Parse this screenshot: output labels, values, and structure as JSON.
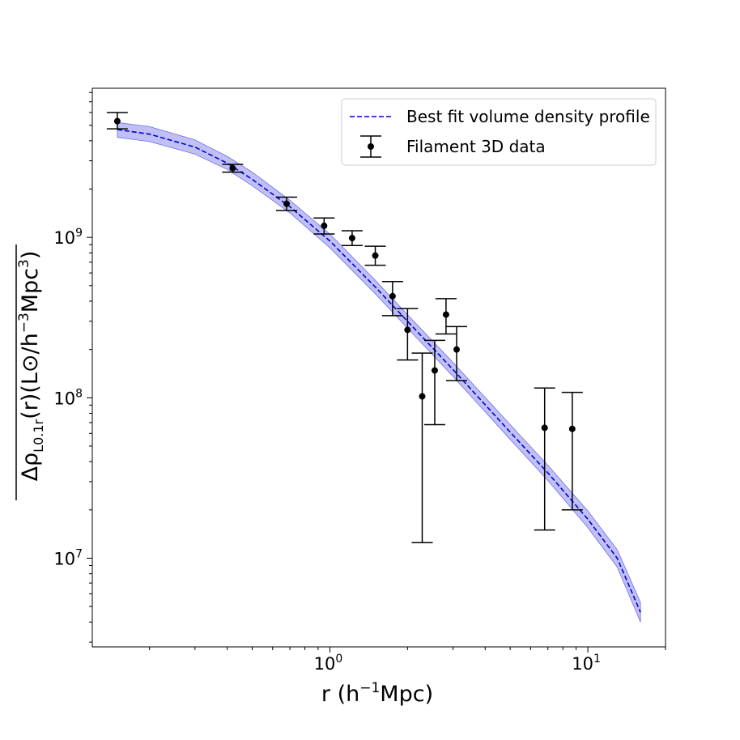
{
  "chart_data": {
    "type": "scatter",
    "title": "",
    "xlabel": "r (h⁻¹Mpc)",
    "ylabel": "Δρ_{L0.1r}(r)(L⊙/h⁻³Mpc³)",
    "xscale": "log",
    "yscale": "log",
    "xlim": [
      0.12,
      20
    ],
    "ylim": [
      2800000.0,
      8500000000.0
    ],
    "x_ticks": [
      {
        "value": 1,
        "base": "10",
        "exp": "0"
      },
      {
        "value": 10,
        "base": "10",
        "exp": "1"
      }
    ],
    "y_ticks": [
      {
        "value": 10000000.0,
        "base": "10",
        "exp": "7"
      },
      {
        "value": 100000000.0,
        "base": "10",
        "exp": "8"
      },
      {
        "value": 1000000000.0,
        "base": "10",
        "exp": "9"
      }
    ],
    "grid": false,
    "legend_position": "top-right",
    "series": [
      {
        "name": "Best fit volume density profile",
        "kind": "line",
        "style": "dashed",
        "color": "#0000cc",
        "band_color": "#8c8cf0",
        "x": [
          0.15,
          0.2,
          0.3,
          0.4,
          0.5,
          0.7,
          1.0,
          1.5,
          2.0,
          3.0,
          5.0,
          7.0,
          10.0,
          13.0,
          16.0
        ],
        "y": [
          4700000000.0,
          4400000000.0,
          3650000000.0,
          2900000000.0,
          2300000000.0,
          1550000000.0,
          950000000.0,
          490000000.0,
          300000000.0,
          150000000.0,
          61000000.0,
          34000000.0,
          17500000.0,
          10000000.0,
          4600000.0
        ],
        "band_lower": [
          4200000000.0,
          3950000000.0,
          3300000000.0,
          2650000000.0,
          2100000000.0,
          1420000000.0,
          860000000.0,
          445000000.0,
          272000000.0,
          136000000.0,
          55000000.0,
          30500000.0,
          15500000.0,
          8800000.0,
          4000000.0
        ],
        "band_upper": [
          5200000000.0,
          4900000000.0,
          4050000000.0,
          3200000000.0,
          2550000000.0,
          1700000000.0,
          1050000000.0,
          540000000.0,
          330000000.0,
          166000000.0,
          68000000.0,
          38000000.0,
          19700000.0,
          11300000.0,
          5300000.0
        ]
      },
      {
        "name": "Filament 3D data",
        "kind": "errorbar",
        "color": "#000000",
        "x": [
          0.15,
          0.42,
          0.68,
          0.95,
          1.22,
          1.5,
          1.75,
          2.0,
          2.28,
          2.55,
          2.82,
          3.1,
          6.8,
          8.7
        ],
        "y": [
          5300000000.0,
          2700000000.0,
          1620000000.0,
          1180000000.0,
          990000000.0,
          770000000.0,
          430000000.0,
          265000000.0,
          102000000.0,
          148000000.0,
          330000000.0,
          200000000.0,
          65000000.0,
          64000000.0
        ],
        "y_lower": [
          4750000000.0,
          2550000000.0,
          1470000000.0,
          1050000000.0,
          890000000.0,
          670000000.0,
          325000000.0,
          172000000.0,
          12500000.0,
          68000000.0,
          250000000.0,
          128000000.0,
          15000000.0,
          20000000.0
        ],
        "y_upper": [
          6000000000.0,
          2850000000.0,
          1780000000.0,
          1320000000.0,
          1100000000.0,
          880000000.0,
          530000000.0,
          360000000.0,
          190000000.0,
          228000000.0,
          415000000.0,
          278000000.0,
          115000000.0,
          108000000.0
        ]
      }
    ]
  }
}
